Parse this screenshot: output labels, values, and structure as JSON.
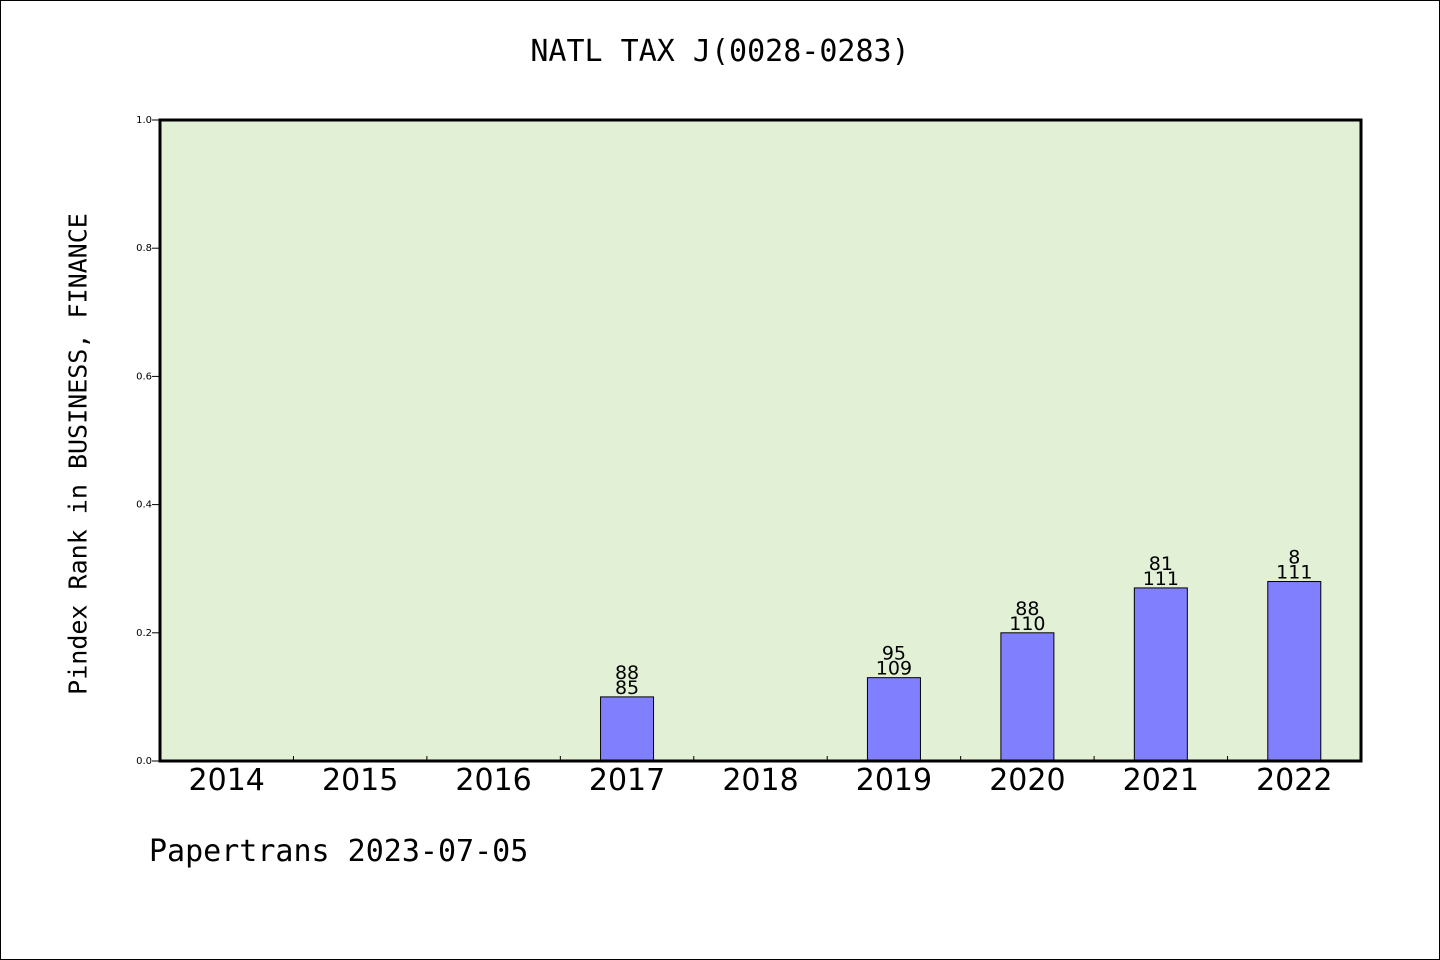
{
  "chart_data": {
    "type": "bar",
    "title": "NATL TAX J(0028-0283)",
    "xlabel": "",
    "ylabel": "Pindex Rank in BUSINESS, FINANCE",
    "categories": [
      "2014",
      "2015",
      "2016",
      "2017",
      "2018",
      "2019",
      "2020",
      "2021",
      "2022"
    ],
    "values": [
      null,
      null,
      null,
      0.1,
      null,
      0.13,
      0.2,
      0.27,
      0.28
    ],
    "bar_labels_top": [
      null,
      null,
      null,
      "88",
      null,
      "95",
      "88",
      "81",
      "8"
    ],
    "bar_labels_bottom": [
      null,
      null,
      null,
      "85",
      null,
      "109",
      "110",
      "111",
      "111"
    ],
    "ylim": [
      0,
      1.0
    ],
    "yticks": [
      "0.0",
      "0.2",
      "0.4",
      "0.6",
      "0.8",
      "1.0"
    ],
    "grid": false,
    "legend": "none",
    "colors": {
      "plot_background": "#e2f0d6",
      "bar_fill": "#8080ff",
      "axis": "#000000"
    }
  },
  "footer": "Papertrans 2023-07-05"
}
